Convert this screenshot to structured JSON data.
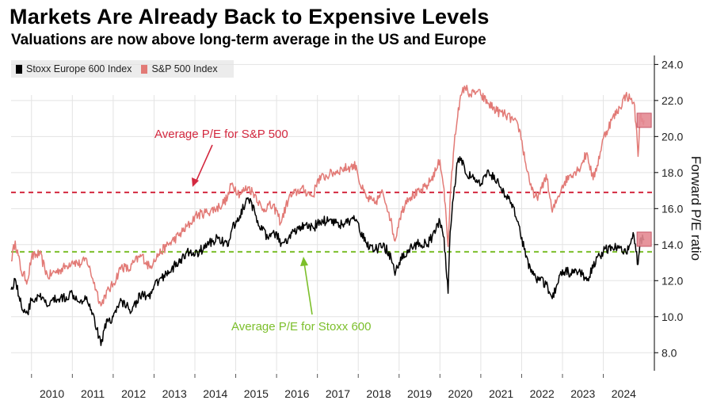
{
  "title": "Markets Are Already Back to Expensive Levels",
  "subtitle": "Valuations are now above long-term average in the US and Europe",
  "colors": {
    "sp500": "#e27a76",
    "stoxx": "#000000",
    "avg_sp": "#d3283f",
    "avg_stoxx": "#7cbf2b",
    "grid": "#e3e3e3"
  },
  "chart_data": {
    "type": "line",
    "title": "Markets Are Already Back to Expensive Levels",
    "ylabel": "Forward P/E ratio",
    "ylim": [
      7.0,
      24.5
    ],
    "yticks": [
      "8.0",
      "10.0",
      "12.0",
      "14.0",
      "16.0",
      "18.0",
      "20.0",
      "22.0",
      "24.0"
    ],
    "xlim": [
      2009.5,
      2025.25
    ],
    "xticks": [
      "2010",
      "2011",
      "2012",
      "2013",
      "2014",
      "2015",
      "2016",
      "2017",
      "2018",
      "2019",
      "2020",
      "2021",
      "2022",
      "2023",
      "2024"
    ],
    "legend": [
      "Stoxx Europe 600 Index",
      "S&P 500 Index"
    ],
    "average_lines": [
      {
        "name": "Average P/E for S&P 500",
        "value": 16.9
      },
      {
        "name": "Average P/E for Stoxx 600",
        "value": 13.6
      }
    ],
    "series": [
      {
        "name": "S&P 500 Index",
        "x": [
          2009.5,
          2009.6,
          2009.75,
          2009.9,
          2010.0,
          2010.2,
          2010.4,
          2010.5,
          2010.7,
          2010.85,
          2011.0,
          2011.2,
          2011.35,
          2011.5,
          2011.6,
          2011.7,
          2011.8,
          2012.0,
          2012.2,
          2012.4,
          2012.5,
          2012.7,
          2012.9,
          2013.0,
          2013.3,
          2013.6,
          2013.9,
          2014.0,
          2014.3,
          2014.6,
          2014.8,
          2014.9,
          2015.1,
          2015.3,
          2015.5,
          2015.65,
          2015.8,
          2016.0,
          2016.1,
          2016.3,
          2016.6,
          2016.9,
          2017.0,
          2017.3,
          2017.6,
          2017.8,
          2017.95,
          2018.05,
          2018.2,
          2018.4,
          2018.6,
          2018.75,
          2018.9,
          2019.0,
          2019.2,
          2019.5,
          2019.7,
          2019.9,
          2020.0,
          2020.1,
          2020.2,
          2020.25,
          2020.35,
          2020.45,
          2020.6,
          2020.75,
          2020.9,
          2021.0,
          2021.2,
          2021.4,
          2021.6,
          2021.8,
          2021.95,
          2022.1,
          2022.3,
          2022.45,
          2022.6,
          2022.75,
          2022.9,
          2023.0,
          2023.2,
          2023.4,
          2023.6,
          2023.75,
          2023.85,
          2024.0,
          2024.2,
          2024.4,
          2024.55,
          2024.65,
          2024.75,
          2024.8,
          2024.85,
          2024.9,
          2025.0
        ],
        "values": [
          13.1,
          14.2,
          12.5,
          12.0,
          13.3,
          13.5,
          12.2,
          12.4,
          12.6,
          12.8,
          13.1,
          12.9,
          13.2,
          12.1,
          11.4,
          10.6,
          11.2,
          11.8,
          12.8,
          12.6,
          13.0,
          13.4,
          12.7,
          13.2,
          13.9,
          14.5,
          15.2,
          15.6,
          15.8,
          16.1,
          16.6,
          17.4,
          16.8,
          17.2,
          16.7,
          15.9,
          16.2,
          15.9,
          15.2,
          16.6,
          17.1,
          16.7,
          17.6,
          17.9,
          18.2,
          18.3,
          18.4,
          17.3,
          16.6,
          16.3,
          16.9,
          15.8,
          14.2,
          15.4,
          16.6,
          16.9,
          17.3,
          18.1,
          18.7,
          17.1,
          13.9,
          16.6,
          19.6,
          21.6,
          22.8,
          22.3,
          22.5,
          22.3,
          21.8,
          21.4,
          21.2,
          20.9,
          20.4,
          18.5,
          16.6,
          16.8,
          17.9,
          15.8,
          16.7,
          17.3,
          17.9,
          18.2,
          19.1,
          17.6,
          18.4,
          19.9,
          20.9,
          21.6,
          22.3,
          22.1,
          21.9,
          20.7,
          18.9,
          21.1,
          20.9
        ]
      },
      {
        "name": "Stoxx Europe 600 Index",
        "x": [
          2009.5,
          2009.6,
          2009.75,
          2009.9,
          2010.0,
          2010.2,
          2010.4,
          2010.5,
          2010.7,
          2010.85,
          2011.0,
          2011.2,
          2011.35,
          2011.5,
          2011.6,
          2011.7,
          2011.8,
          2012.0,
          2012.2,
          2012.4,
          2012.5,
          2012.7,
          2012.9,
          2013.0,
          2013.3,
          2013.6,
          2013.9,
          2014.0,
          2014.3,
          2014.6,
          2014.8,
          2014.9,
          2015.1,
          2015.3,
          2015.5,
          2015.65,
          2015.8,
          2016.0,
          2016.1,
          2016.3,
          2016.6,
          2016.9,
          2017.0,
          2017.3,
          2017.6,
          2017.8,
          2017.95,
          2018.05,
          2018.2,
          2018.4,
          2018.6,
          2018.75,
          2018.9,
          2019.0,
          2019.2,
          2019.5,
          2019.7,
          2019.9,
          2020.0,
          2020.1,
          2020.2,
          2020.25,
          2020.35,
          2020.45,
          2020.6,
          2020.75,
          2020.9,
          2021.0,
          2021.2,
          2021.4,
          2021.6,
          2021.8,
          2021.95,
          2022.1,
          2022.3,
          2022.45,
          2022.6,
          2022.75,
          2022.9,
          2023.0,
          2023.2,
          2023.4,
          2023.6,
          2023.75,
          2023.85,
          2024.0,
          2024.2,
          2024.4,
          2024.55,
          2024.65,
          2024.75,
          2024.8,
          2024.85,
          2024.9,
          2025.0
        ],
        "values": [
          11.5,
          12.1,
          10.6,
          10.2,
          10.9,
          11.1,
          10.6,
          10.9,
          11.0,
          11.1,
          11.3,
          10.9,
          11.1,
          10.2,
          9.3,
          8.4,
          9.6,
          10.0,
          10.9,
          10.4,
          10.6,
          11.3,
          11.0,
          11.7,
          12.4,
          13.0,
          13.7,
          13.4,
          14.0,
          14.4,
          13.9,
          14.8,
          15.6,
          16.6,
          15.6,
          14.8,
          14.3,
          14.7,
          13.9,
          14.4,
          15.0,
          14.9,
          15.2,
          15.4,
          15.1,
          15.3,
          15.4,
          14.6,
          14.1,
          13.7,
          13.9,
          13.6,
          12.3,
          13.0,
          13.7,
          14.1,
          14.0,
          14.8,
          15.3,
          14.4,
          11.3,
          14.7,
          17.2,
          18.8,
          18.3,
          17.7,
          17.6,
          17.3,
          18.0,
          17.6,
          16.7,
          16.1,
          15.0,
          13.3,
          12.3,
          12.0,
          11.8,
          11.0,
          11.9,
          12.6,
          12.4,
          12.5,
          12.0,
          12.7,
          13.3,
          13.6,
          13.9,
          13.8,
          13.6,
          14.0,
          14.5,
          13.6,
          12.9,
          14.3,
          14.3
        ]
      }
    ]
  }
}
